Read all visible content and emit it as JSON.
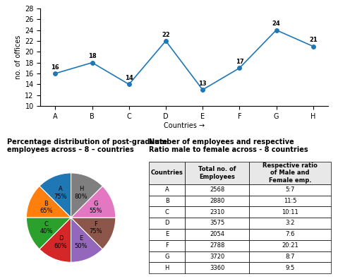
{
  "chart_data": [
    {
      "type": "line",
      "categories": [
        "A",
        "B",
        "C",
        "D",
        "E",
        "F",
        "G",
        "H"
      ],
      "values": [
        16,
        18,
        14,
        22,
        13,
        17,
        24,
        21
      ],
      "xlabel": "Countries →",
      "ylabel": "no. of offices",
      "ylim": [
        10,
        28
      ],
      "yticks": [
        10,
        12,
        14,
        16,
        18,
        20,
        22,
        24,
        26,
        28
      ],
      "data_labels": true,
      "marker": "o"
    },
    {
      "type": "pie",
      "title": "Percentage distribution of post-graduate\nemployees across – 8 – countries",
      "values": [
        75,
        65,
        40,
        60,
        50,
        75,
        55,
        80
      ],
      "value_labels": [
        "A\n75%",
        "B\n65%",
        "C\n40%",
        "D\n60%",
        "E\n50%",
        "F\n75%",
        "G\n55%",
        "H\n80%"
      ]
    },
    {
      "type": "table",
      "title": "Number of employees and respective\nRatio male to female across - 8 countries",
      "columns": [
        "Countries",
        "Total no. of\nEmployees",
        "Respective ratio\nof Male and\nFemale emp."
      ],
      "rows": [
        [
          "A",
          2568,
          "5:7"
        ],
        [
          "B",
          2880,
          "11:5"
        ],
        [
          "C",
          2310,
          "10:11"
        ],
        [
          "D",
          3575,
          "3:2"
        ],
        [
          "E",
          2054,
          "7:6"
        ],
        [
          "F",
          2788,
          "20:21"
        ],
        [
          "G",
          3720,
          "8:7"
        ],
        [
          "H",
          3360,
          "9:5"
        ]
      ]
    }
  ]
}
